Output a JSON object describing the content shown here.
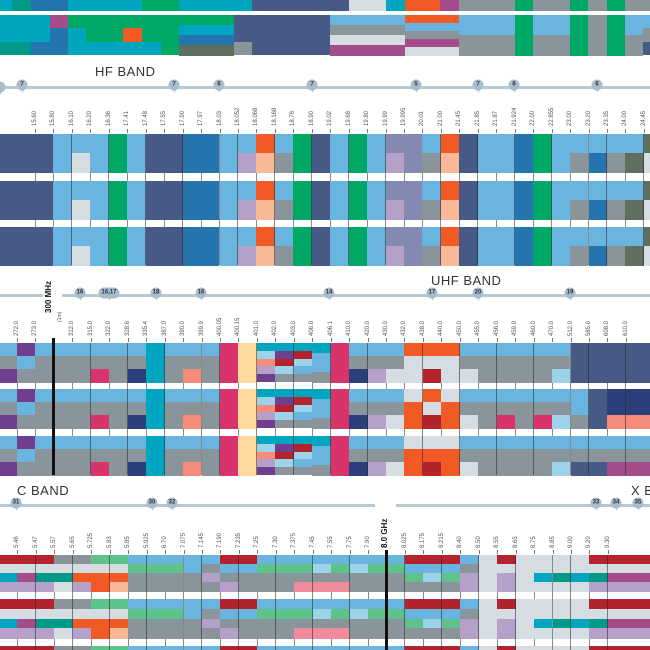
{
  "palette": {
    "N": "#465a85",
    "L": "#6ab5df",
    "G": "#00a865",
    "B": "#2474ad",
    "O": "#f15a24",
    "P": "#f9b998",
    "V": "#b5a0c9",
    "S": "#89949b",
    "W": "#d6dde2",
    "Q": "#8389b0",
    "D": "#5e6f60",
    "T": "#00a5c0",
    "M": "#d8336b",
    "Y": "#ffd99b",
    "U": "#6f3e8f",
    "K": "#2d3f7b",
    "R": "#b2232d",
    "E": "#f58b7b",
    "A": "#9dd3e8",
    "C": "#00998a",
    "H": "#a44b8a",
    "I": "#5ec38a",
    "J": "#f08a9d"
  },
  "top": {
    "columns": [
      [
        "T",
        "TTC"
      ],
      [
        "C",
        "TTC"
      ],
      [
        "B",
        "TTB"
      ],
      [
        "B",
        "HBB"
      ],
      [
        "T",
        "GTT"
      ],
      [
        "T",
        "GGT"
      ],
      [
        "T",
        "GOT"
      ],
      [
        "G",
        "GGT"
      ],
      [
        "G",
        "GGG"
      ],
      [
        "T",
        "GTBD"
      ],
      [
        "T",
        "GTBD"
      ],
      [
        "T",
        "GTBD"
      ],
      [
        "T",
        "NNS"
      ],
      [
        "N",
        "NNN"
      ],
      [
        "N",
        "NNN"
      ],
      [
        "N",
        "LSWH"
      ],
      [
        "W",
        "LSWH"
      ],
      [
        "T",
        "LSWH"
      ],
      [
        "O",
        "OLSHW"
      ],
      [
        "H",
        "OLSHW"
      ],
      [
        "S",
        "LS"
      ],
      [
        "G",
        "GG"
      ],
      [
        "S",
        "LS"
      ],
      [
        "G",
        "GG"
      ],
      [
        "S",
        "SS"
      ],
      [
        "G",
        "GG"
      ],
      [
        "S",
        "LS"
      ],
      [
        "S",
        "LSN"
      ]
    ]
  },
  "hf": {
    "title": "HF BAND",
    "pins": [
      {
        "label": "7"
      },
      {
        "label": "7"
      },
      {
        "label": "6"
      },
      {
        "label": "7"
      },
      {
        "label": "5"
      },
      {
        "label": "7"
      },
      {
        "label": "6"
      },
      {
        "label": "6"
      }
    ],
    "ticks": [
      "15.60",
      "15.80",
      "16.10",
      "16.20",
      "16.36",
      "17.41",
      "17.48",
      "17.55",
      "17.90",
      "17.97",
      "18.03",
      "18.052",
      "18.068",
      "18.168",
      "18.78",
      "18.90",
      "19.02",
      "19.68",
      "19.80",
      "19.99",
      "19.995",
      "20.01",
      "21.00",
      "21.45",
      "21.85",
      "21.87",
      "21.924",
      "22.00",
      "22.855",
      "23.00",
      "23.20",
      "23.35",
      "24.00",
      "24.45"
    ],
    "columns": [
      "N",
      "N",
      "L",
      "LW",
      "L",
      "G",
      "L",
      "N",
      "N",
      "B",
      "B",
      "L",
      "LV",
      "OP",
      "LS",
      "G",
      "N",
      "L",
      "G",
      "L",
      "QV",
      "Q",
      "LS",
      "OP",
      "N",
      "L",
      "L",
      "B",
      "G",
      "L",
      "LS",
      "LB",
      "LS",
      "LD",
      "DW"
    ]
  },
  "uhf": {
    "title": "UHF BAND",
    "marker": "300 MHz",
    "marker_sub": "(1m)",
    "pins": [
      {
        "label": "16"
      },
      {
        "label": "16,17"
      },
      {
        "label": "18"
      },
      {
        "label": "16"
      },
      {
        "label": "14"
      },
      {
        "label": "17"
      },
      {
        "label": "20"
      },
      {
        "label": "19"
      }
    ],
    "ticks": [
      "272.0",
      "273.0",
      "",
      "312.0",
      "315.0",
      "322.0",
      "328.6",
      "335.4",
      "387.0",
      "390.0",
      "399.9",
      "400.05",
      "400.15",
      "401.0",
      "402.0",
      "403.0",
      "406.0",
      "406.1",
      "410.0",
      "420.0",
      "430.0",
      "432.0",
      "438.0",
      "440.0",
      "450.0",
      "455.0",
      "456.0",
      "459.0",
      "460.0",
      "470.0",
      "512.0",
      "585.0",
      "608.0",
      "610.0"
    ],
    "columns": [
      "LSU",
      "ULS",
      "LSS",
      "LSS",
      "LSS",
      "LSM",
      "LSS",
      "LSK",
      "TTT",
      "LSS",
      "LSE",
      "LSS",
      "MMM",
      "YYY",
      "TAEVU",
      "TURAS",
      "TRALS",
      "TLLS",
      "MMM",
      "LSK",
      "LSV",
      "LSW",
      [
        "OWW",
        "WOO",
        "WOO"
      ],
      [
        "OWR",
        "OWR",
        "WOR"
      ],
      [
        "OWW",
        "WOO",
        "WOO"
      ],
      "LSW",
      "LSS",
      [
        "LSS",
        "LSM",
        "LSS"
      ],
      "LSS",
      [
        "LSS",
        "LSM",
        "LSS"
      ],
      "LSA",
      [
        "NNN",
        "LLS",
        "LSN"
      ],
      [
        "NNN",
        "NNN",
        "LSN"
      ],
      [
        "NNN",
        "KKE",
        "LSH"
      ],
      [
        "NNN",
        "KKE",
        "LSH"
      ]
    ]
  },
  "c": {
    "title": "C BAND",
    "next_title": "X BAND",
    "marker": "8.0 GHz",
    "pins": [
      {
        "label": "31"
      },
      {
        "label": "30"
      },
      {
        "label": "32"
      },
      {
        "label": "33"
      },
      {
        "label": "34"
      },
      {
        "label": "35"
      }
    ],
    "ticks": [
      "5.35",
      "5.46",
      "5.47",
      "5.57",
      "5.65",
      "5.725",
      "5.83",
      "5.85",
      "5.925",
      "6.70",
      "7.075",
      "7.145",
      "7.190",
      "7.235",
      "7.25",
      "7.30",
      "7.375",
      "7.45",
      "7.55",
      "7.75",
      "7.90",
      "",
      "8.025",
      "8.175",
      "8.215",
      "8.40",
      "8.50",
      "8.55",
      "8.65",
      "8.75",
      "8.85",
      "9.00",
      "9.20",
      "9.30"
    ],
    "columns": [
      "RWTV",
      "RWHV",
      "RWCV",
      "SWCW",
      "SWOV",
      "IWOO",
      "IWOP",
      "LISS",
      "LISS",
      "LISS",
      "LLSS",
      "LSVS",
      "RLSV",
      "RLSS",
      "LISS",
      "LISS",
      "LISJ",
      "LASJ",
      "LISJ",
      "LASS",
      "LISS",
      "LISS",
      "RLIS",
      "RLAS",
      "RLIS",
      "LSVV",
      "WWWW",
      "RWVV",
      "WWWW",
      "WWTW",
      "WWCW",
      "WWTW",
      "RWCV",
      "RWHV"
    ]
  }
}
